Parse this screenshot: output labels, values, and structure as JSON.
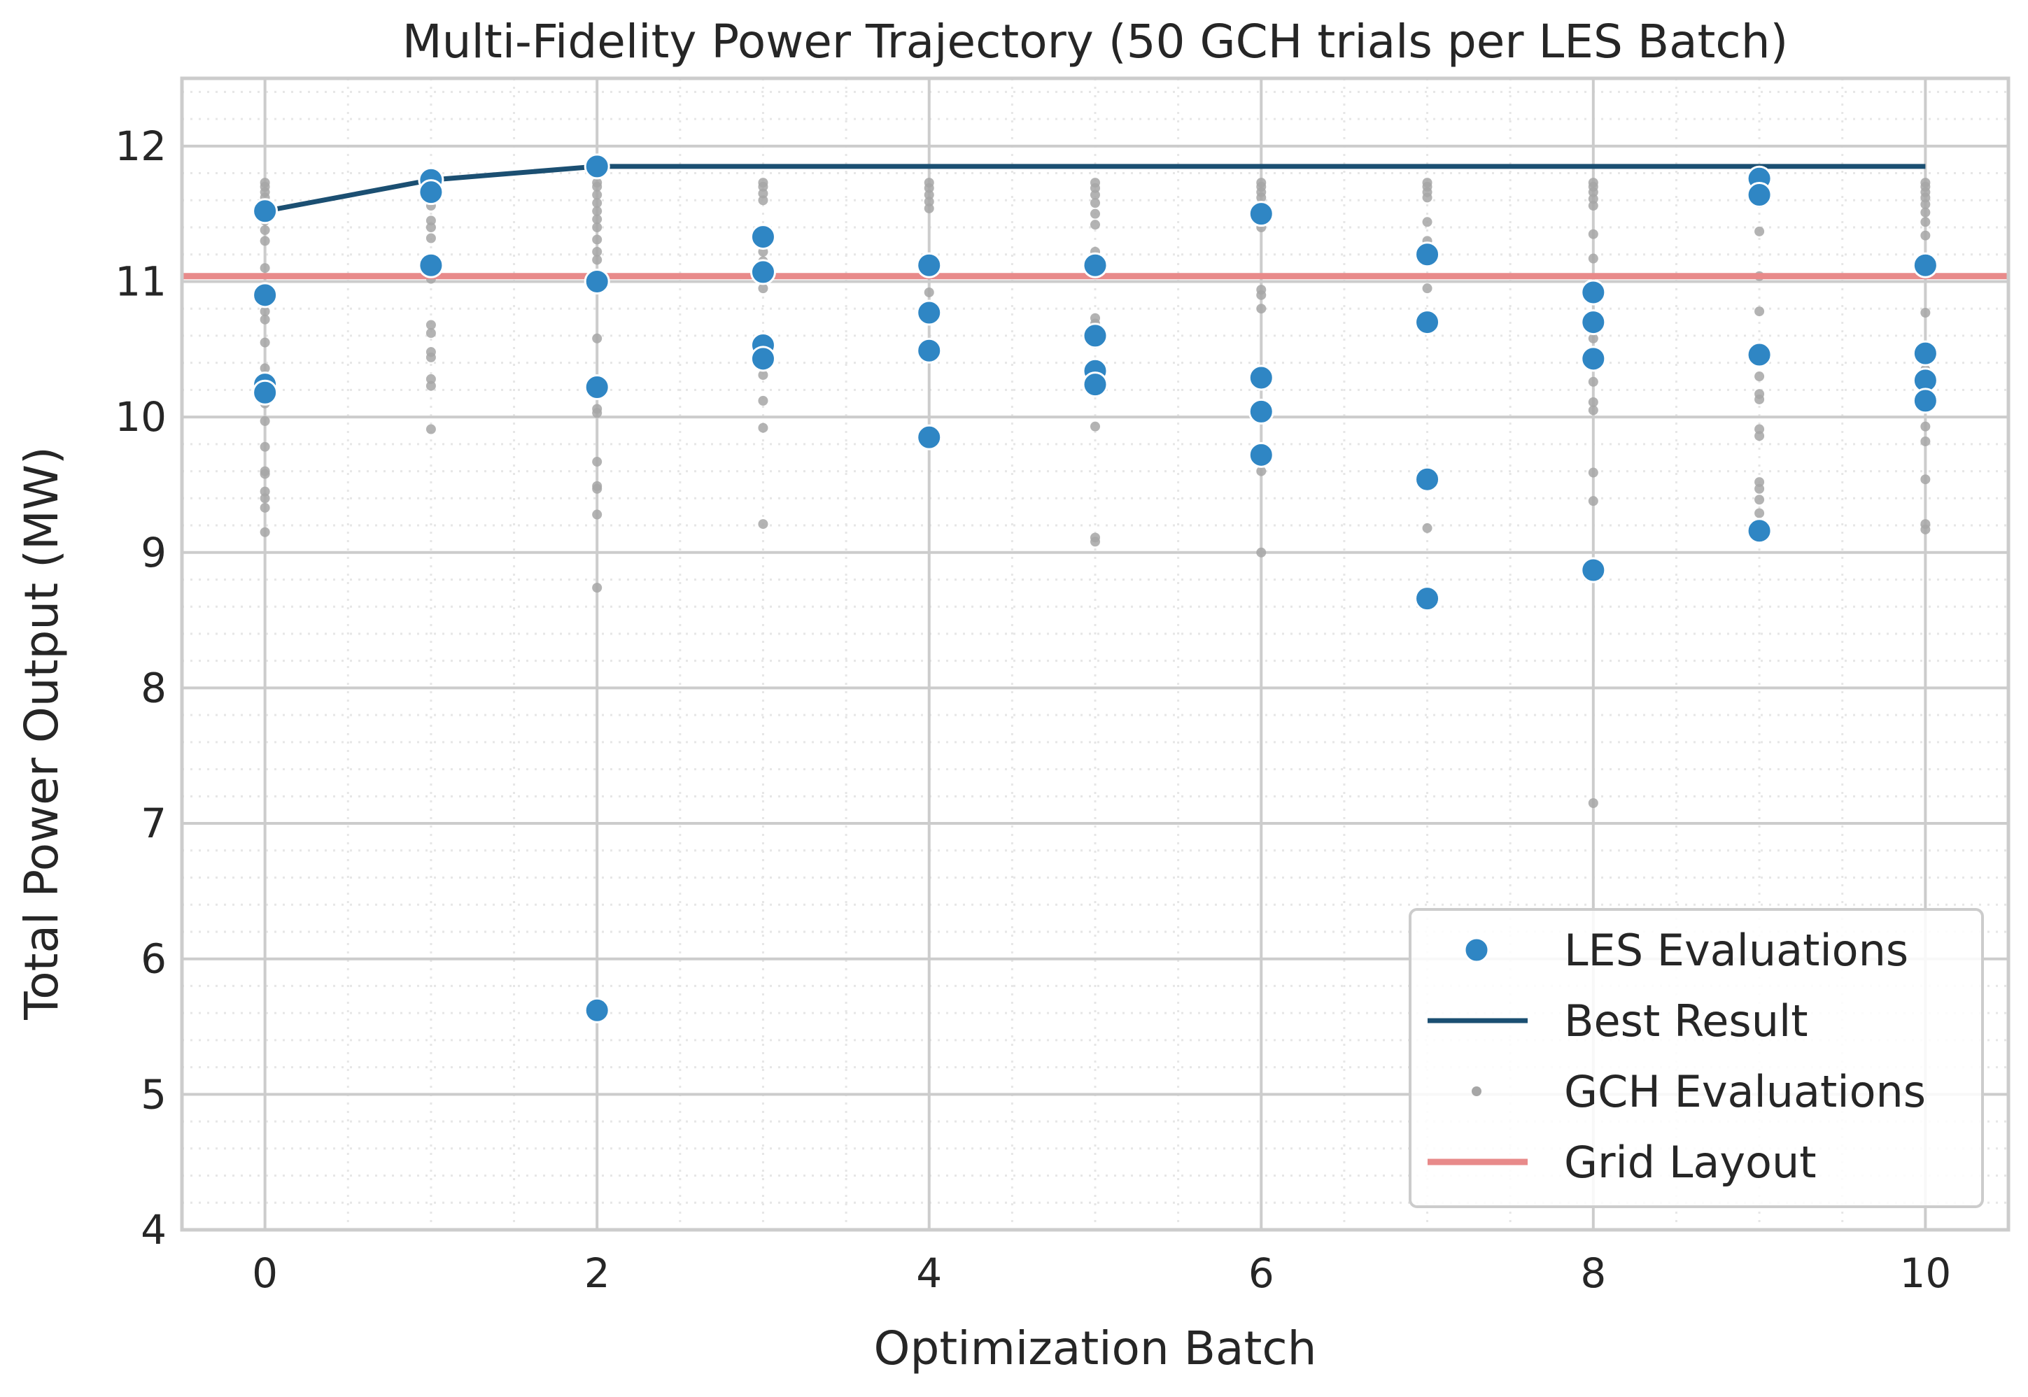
{
  "chart_data": {
    "type": "scatter",
    "title": "Multi-Fidelity Power Trajectory (50 GCH trials per LES Batch)",
    "xlabel": "Optimization Batch",
    "ylabel": "Total Power Output (MW)",
    "xlim": [
      -0.5,
      10.5
    ],
    "ylim": [
      4,
      12.5
    ],
    "xticks": [
      0,
      2,
      4,
      6,
      8,
      10
    ],
    "yticks": [
      4,
      5,
      6,
      7,
      8,
      9,
      10,
      11,
      12
    ],
    "xtick_labels": [
      "0",
      "2",
      "4",
      "6",
      "8",
      "10"
    ],
    "ytick_labels": [
      "4",
      "5",
      "6",
      "7",
      "8",
      "9",
      "10",
      "11",
      "12"
    ],
    "grid": true,
    "minor_grid": true,
    "legend": {
      "position": "lower-right",
      "entries": [
        "LES Evaluations",
        "Best Result",
        "GCH Evaluations",
        "Grid Layout"
      ]
    },
    "colors": {
      "les": "#2f86c4",
      "best": "#1b4f72",
      "gch": "#a6a6a6",
      "grid_layout": "#e88a8a",
      "major_grid": "#cccccc",
      "minor_grid": "#e6e6e6",
      "spine": "#cccccc"
    },
    "series": [
      {
        "name": "LES Evaluations",
        "kind": "scatter",
        "points": [
          [
            0,
            11.52
          ],
          [
            0,
            10.9
          ],
          [
            0,
            10.24
          ],
          [
            0,
            10.18
          ],
          [
            1,
            11.75
          ],
          [
            1,
            11.66
          ],
          [
            1,
            11.12
          ],
          [
            2,
            11.85
          ],
          [
            2,
            11.0
          ],
          [
            2,
            10.22
          ],
          [
            2,
            5.62
          ],
          [
            3,
            11.33
          ],
          [
            3,
            11.07
          ],
          [
            3,
            10.53
          ],
          [
            3,
            10.43
          ],
          [
            4,
            11.12
          ],
          [
            4,
            10.77
          ],
          [
            4,
            10.49
          ],
          [
            4,
            9.85
          ],
          [
            5,
            11.12
          ],
          [
            5,
            10.6
          ],
          [
            5,
            10.34
          ],
          [
            5,
            10.24
          ],
          [
            6,
            11.5
          ],
          [
            6,
            10.29
          ],
          [
            6,
            10.04
          ],
          [
            6,
            9.72
          ],
          [
            7,
            11.2
          ],
          [
            7,
            10.7
          ],
          [
            7,
            9.54
          ],
          [
            7,
            8.66
          ],
          [
            8,
            10.92
          ],
          [
            8,
            10.7
          ],
          [
            8,
            10.43
          ],
          [
            8,
            8.87
          ],
          [
            9,
            11.76
          ],
          [
            9,
            11.64
          ],
          [
            9,
            10.46
          ],
          [
            9,
            9.16
          ],
          [
            10,
            11.12
          ],
          [
            10,
            10.47
          ],
          [
            10,
            10.27
          ],
          [
            10,
            10.12
          ]
        ]
      },
      {
        "name": "Best Result",
        "kind": "line",
        "points": [
          [
            0,
            11.52
          ],
          [
            1,
            11.75
          ],
          [
            2,
            11.85
          ],
          [
            3,
            11.85
          ],
          [
            4,
            11.85
          ],
          [
            5,
            11.85
          ],
          [
            6,
            11.85
          ],
          [
            7,
            11.85
          ],
          [
            8,
            11.85
          ],
          [
            9,
            11.85
          ],
          [
            10,
            11.85
          ]
        ]
      },
      {
        "name": "GCH Evaluations",
        "kind": "scatter",
        "points": [
          [
            0,
            11.73
          ],
          [
            0,
            11.7
          ],
          [
            0,
            11.66
          ],
          [
            0,
            11.62
          ],
          [
            0,
            11.58
          ],
          [
            0,
            11.53
          ],
          [
            0,
            11.45
          ],
          [
            0,
            11.38
          ],
          [
            0,
            11.3
          ],
          [
            0,
            11.1
          ],
          [
            0,
            10.95
          ],
          [
            0,
            10.78
          ],
          [
            0,
            10.72
          ],
          [
            0,
            10.55
          ],
          [
            0,
            10.36
          ],
          [
            0,
            10.3
          ],
          [
            0,
            10.1
          ],
          [
            0,
            9.97
          ],
          [
            0,
            9.78
          ],
          [
            0,
            9.6
          ],
          [
            0,
            9.58
          ],
          [
            0,
            9.45
          ],
          [
            0,
            9.4
          ],
          [
            0,
            9.33
          ],
          [
            0,
            9.15
          ],
          [
            1,
            11.73
          ],
          [
            1,
            11.68
          ],
          [
            1,
            11.62
          ],
          [
            1,
            11.56
          ],
          [
            1,
            11.45
          ],
          [
            1,
            11.4
          ],
          [
            1,
            11.32
          ],
          [
            1,
            11.02
          ],
          [
            1,
            10.68
          ],
          [
            1,
            10.62
          ],
          [
            1,
            10.48
          ],
          [
            1,
            10.44
          ],
          [
            1,
            10.28
          ],
          [
            1,
            10.23
          ],
          [
            1,
            9.91
          ],
          [
            2,
            11.73
          ],
          [
            2,
            11.7
          ],
          [
            2,
            11.64
          ],
          [
            2,
            11.58
          ],
          [
            2,
            11.52
          ],
          [
            2,
            11.46
          ],
          [
            2,
            11.4
          ],
          [
            2,
            11.31
          ],
          [
            2,
            11.22
          ],
          [
            2,
            11.16
          ],
          [
            2,
            10.58
          ],
          [
            2,
            10.06
          ],
          [
            2,
            10.03
          ],
          [
            2,
            9.67
          ],
          [
            2,
            9.49
          ],
          [
            2,
            9.47
          ],
          [
            2,
            9.28
          ],
          [
            2,
            8.74
          ],
          [
            3,
            11.73
          ],
          [
            3,
            11.7
          ],
          [
            3,
            11.65
          ],
          [
            3,
            11.6
          ],
          [
            3,
            11.22
          ],
          [
            3,
            11.15
          ],
          [
            3,
            10.95
          ],
          [
            3,
            10.4
          ],
          [
            3,
            10.31
          ],
          [
            3,
            10.12
          ],
          [
            3,
            9.92
          ],
          [
            3,
            9.21
          ],
          [
            4,
            11.73
          ],
          [
            4,
            11.69
          ],
          [
            4,
            11.64
          ],
          [
            4,
            11.59
          ],
          [
            4,
            11.54
          ],
          [
            4,
            11.15
          ],
          [
            4,
            10.92
          ],
          [
            4,
            10.45
          ],
          [
            5,
            11.73
          ],
          [
            5,
            11.69
          ],
          [
            5,
            11.64
          ],
          [
            5,
            11.58
          ],
          [
            5,
            11.5
          ],
          [
            5,
            11.42
          ],
          [
            5,
            11.22
          ],
          [
            5,
            11.1
          ],
          [
            5,
            10.73
          ],
          [
            5,
            10.69
          ],
          [
            5,
            9.93
          ],
          [
            5,
            9.11
          ],
          [
            5,
            9.08
          ],
          [
            6,
            11.73
          ],
          [
            6,
            11.7
          ],
          [
            6,
            11.66
          ],
          [
            6,
            11.62
          ],
          [
            6,
            11.4
          ],
          [
            6,
            10.94
          ],
          [
            6,
            10.9
          ],
          [
            6,
            10.8
          ],
          [
            6,
            9.6
          ],
          [
            6,
            9.0
          ],
          [
            7,
            11.73
          ],
          [
            7,
            11.7
          ],
          [
            7,
            11.66
          ],
          [
            7,
            11.62
          ],
          [
            7,
            11.44
          ],
          [
            7,
            11.3
          ],
          [
            7,
            11.26
          ],
          [
            7,
            10.95
          ],
          [
            7,
            9.18
          ],
          [
            8,
            11.73
          ],
          [
            8,
            11.7
          ],
          [
            8,
            11.66
          ],
          [
            8,
            11.61
          ],
          [
            8,
            11.56
          ],
          [
            8,
            11.35
          ],
          [
            8,
            11.17
          ],
          [
            8,
            10.58
          ],
          [
            8,
            10.42
          ],
          [
            8,
            10.26
          ],
          [
            8,
            10.11
          ],
          [
            8,
            10.05
          ],
          [
            8,
            9.59
          ],
          [
            8,
            9.38
          ],
          [
            8,
            7.15
          ],
          [
            9,
            11.74
          ],
          [
            9,
            11.7
          ],
          [
            9,
            11.58
          ],
          [
            9,
            11.37
          ],
          [
            9,
            11.04
          ],
          [
            9,
            10.78
          ],
          [
            9,
            10.3
          ],
          [
            9,
            10.17
          ],
          [
            9,
            10.13
          ],
          [
            9,
            9.91
          ],
          [
            9,
            9.86
          ],
          [
            9,
            9.52
          ],
          [
            9,
            9.47
          ],
          [
            9,
            9.39
          ],
          [
            9,
            9.29
          ],
          [
            10,
            11.73
          ],
          [
            10,
            11.7
          ],
          [
            10,
            11.66
          ],
          [
            10,
            11.62
          ],
          [
            10,
            11.57
          ],
          [
            10,
            11.51
          ],
          [
            10,
            11.44
          ],
          [
            10,
            11.34
          ],
          [
            10,
            10.77
          ],
          [
            10,
            10.35
          ],
          [
            10,
            9.93
          ],
          [
            10,
            9.82
          ],
          [
            10,
            9.54
          ],
          [
            10,
            9.21
          ],
          [
            10,
            9.17
          ]
        ]
      },
      {
        "name": "Grid Layout",
        "kind": "hline",
        "y": 11.04
      }
    ]
  }
}
